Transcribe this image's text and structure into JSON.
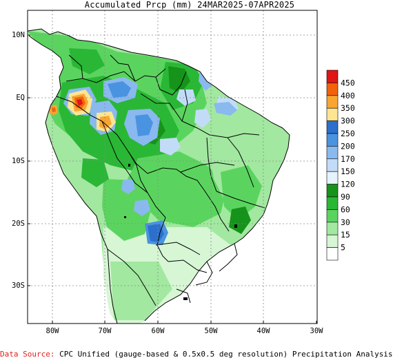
{
  "title": "Accumulated Prcp (mm) 24MAR2025-07APR2025",
  "map": {
    "lat_labels": [
      "10N",
      "EQ",
      "10S",
      "20S",
      "30S"
    ],
    "lon_labels": [
      "80W",
      "70W",
      "60W",
      "50W",
      "40W",
      "30W"
    ]
  },
  "legend": {
    "thresholds": [
      "450",
      "400",
      "350",
      "300",
      "250",
      "200",
      "170",
      "150",
      "120",
      "90",
      "60",
      "30",
      "15",
      "5"
    ],
    "colors": [
      "#e01515",
      "#f2620a",
      "#f9a531",
      "#fde591",
      "#2c70cc",
      "#4a93e1",
      "#8ab9ef",
      "#c2dcf8",
      "#e6f2fc",
      "#16931a",
      "#2ab736",
      "#5bd45f",
      "#a2e8a0",
      "#d6f6d4",
      "#ffffff"
    ]
  },
  "footer": {
    "source_label": "Data Source:",
    "source_text": "CPC Unified (gauge-based & 0.5x0.5 deg resolution) Precipitation Analysis"
  }
}
